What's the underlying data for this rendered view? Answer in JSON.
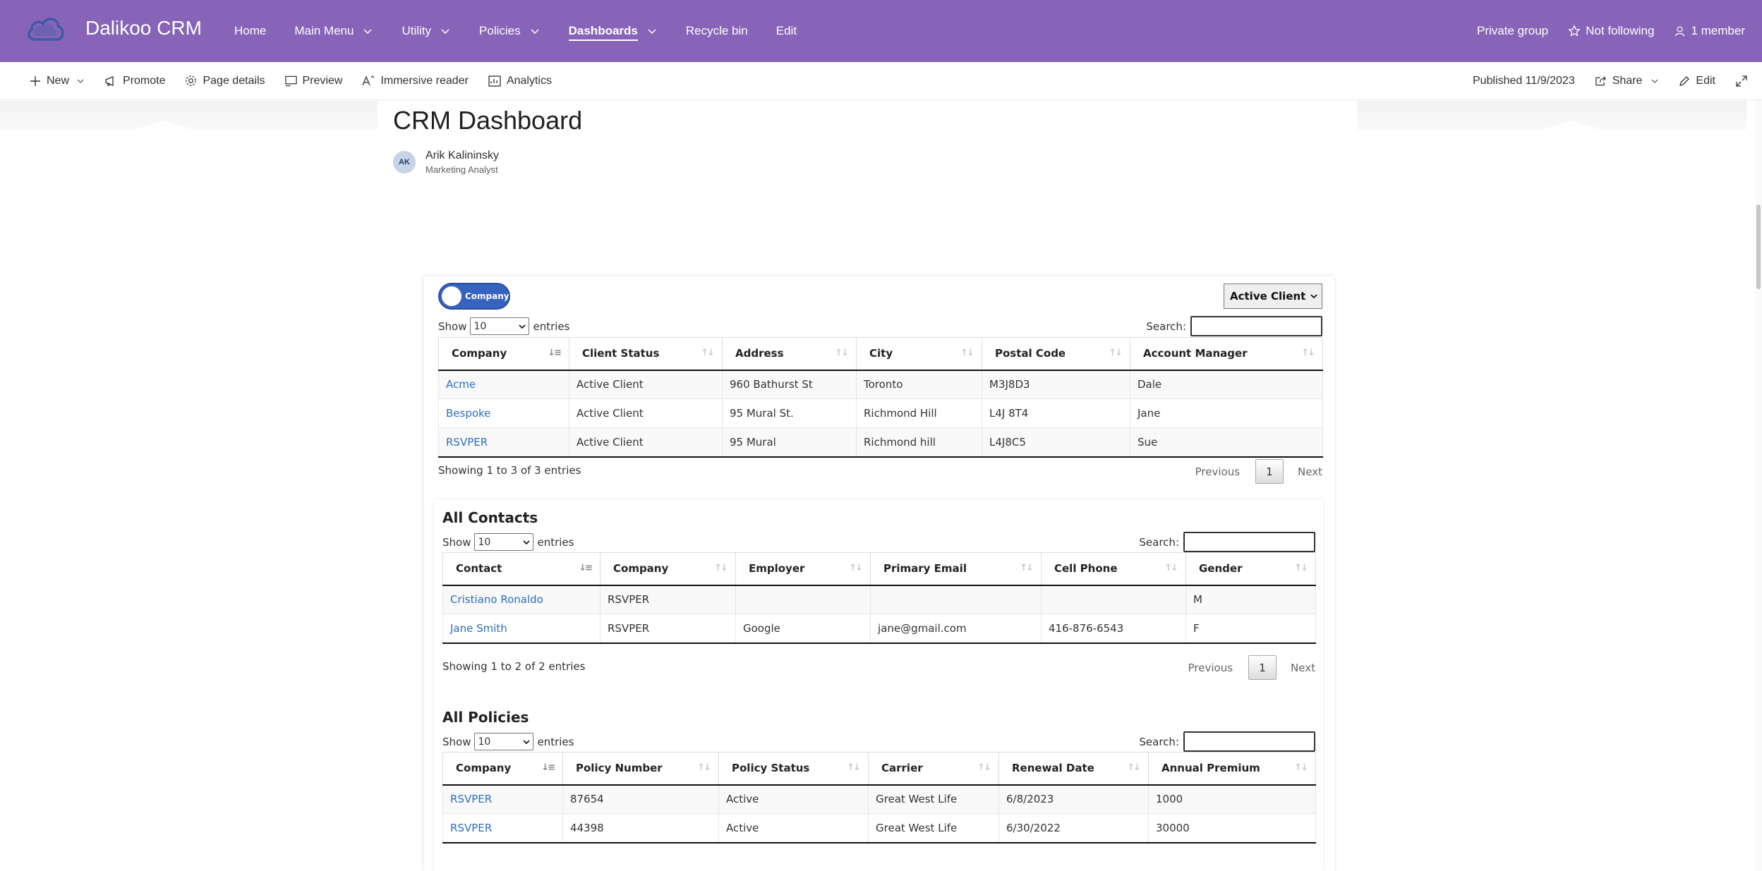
{
  "site": {
    "title": "Dalikoo CRM"
  },
  "nav": [
    {
      "label": "Home",
      "dropdown": false,
      "active": false
    },
    {
      "label": "Main Menu",
      "dropdown": true,
      "active": false
    },
    {
      "label": "Utility",
      "dropdown": true,
      "active": false
    },
    {
      "label": "Policies",
      "dropdown": true,
      "active": false
    },
    {
      "label": "Dashboards",
      "dropdown": true,
      "active": true
    },
    {
      "label": "Recycle bin",
      "dropdown": false,
      "active": false
    },
    {
      "label": "Edit",
      "dropdown": false,
      "active": false
    }
  ],
  "top_right": {
    "privacy": "Private group",
    "follow": "Not following",
    "members": "1 member"
  },
  "commands": {
    "new": "New",
    "promote": "Promote",
    "page_details": "Page details",
    "preview": "Preview",
    "immersive": "Immersive reader",
    "analytics": "Analytics"
  },
  "commands_right": {
    "published": "Published 11/9/2023",
    "share": "Share",
    "edit": "Edit"
  },
  "page": {
    "title": "CRM Dashboard",
    "author_initials": "AK",
    "author_name": "Arik Kalininsky",
    "author_role": "Marketing Analyst"
  },
  "dashboard": {
    "toggle_label": "Company",
    "status_filter": "Active Client",
    "show_label": "Show",
    "entries_label": "entries",
    "page_size": "10",
    "search_label": "Search:",
    "prev_label": "Previous",
    "next_label": "Next",
    "page_number": "1",
    "companies": {
      "columns": [
        "Company",
        "Client Status",
        "Address",
        "City",
        "Postal Code",
        "Account Manager"
      ],
      "rows": [
        [
          "Acme",
          "Active Client",
          "960 Bathurst St",
          "Toronto",
          "M3J8D3",
          "Dale"
        ],
        [
          "Bespoke",
          "Active Client",
          "95 Mural St.",
          "Richmond Hill",
          "L4J 8T4",
          "Jane"
        ],
        [
          "RSVPER",
          "Active Client",
          "95 Mural",
          "Richmond hill",
          "L4J8C5",
          "Sue"
        ]
      ],
      "info": "Showing 1 to 3 of 3 entries"
    },
    "contacts": {
      "title": "All Contacts",
      "columns": [
        "Contact",
        "Company",
        "Employer",
        "Primary Email",
        "Cell Phone",
        "Gender"
      ],
      "rows": [
        [
          "Cristiano Ronaldo",
          "RSVPER",
          "",
          "",
          "",
          "M"
        ],
        [
          "Jane Smith",
          "RSVPER",
          "Google",
          "jane@gmail.com",
          "416-876-6543",
          "F"
        ]
      ],
      "info": "Showing 1 to 2 of 2 entries"
    },
    "policies": {
      "title": "All Policies",
      "columns": [
        "Company",
        "Policy Number",
        "Policy Status",
        "Carrier",
        "Renewal Date",
        "Annual Premium"
      ],
      "rows": [
        [
          "RSVPER",
          "87654",
          "Active",
          "Great West Life",
          "6/8/2023",
          "1000"
        ],
        [
          "RSVPER",
          "44398",
          "Active",
          "Great West Life",
          "6/30/2022",
          "30000"
        ]
      ]
    }
  }
}
